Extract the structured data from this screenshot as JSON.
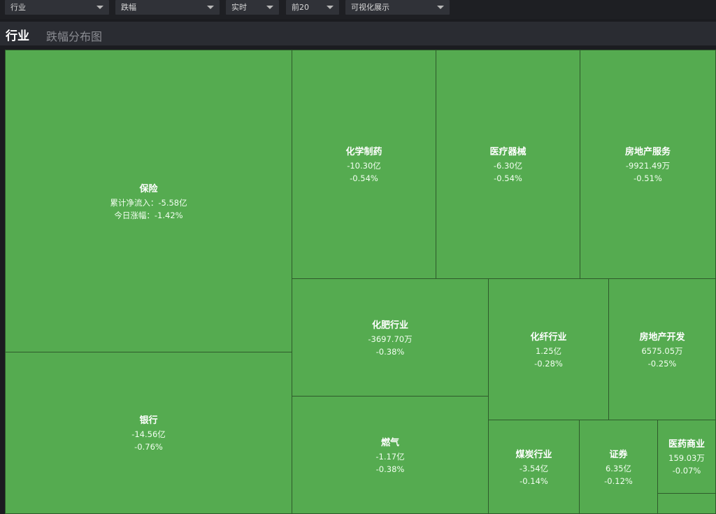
{
  "toolbar": {
    "category": "行业",
    "metric": "跌幅",
    "timeframe": "实时",
    "topn": "前20",
    "display": "可视化展示"
  },
  "header": {
    "title": "行业",
    "subtitle": "跌幅分布图"
  },
  "cells": [
    {
      "id": "baoxian",
      "name": "保险",
      "flow_label": "累计净流入：",
      "flow": "-5.58亿",
      "change_label": "今日涨幅：",
      "change": "-1.42%"
    },
    {
      "id": "yinhang",
      "name": "银行",
      "flow": "-14.56亿",
      "change": "-0.76%"
    },
    {
      "id": "huaxuezhiyao",
      "name": "化学制药",
      "flow": "-10.30亿",
      "change": "-0.54%"
    },
    {
      "id": "yiliaoqixie",
      "name": "医疗器械",
      "flow": "-6.30亿",
      "change": "-0.54%"
    },
    {
      "id": "fangdichanfuwu",
      "name": "房地产服务",
      "flow": "-9921.49万",
      "change": "-0.51%"
    },
    {
      "id": "huafeihangye",
      "name": "化肥行业",
      "flow": "-3697.70万",
      "change": "-0.38%"
    },
    {
      "id": "ranqi",
      "name": "燃气",
      "flow": "-1.17亿",
      "change": "-0.38%"
    },
    {
      "id": "huaxianhangye",
      "name": "化纤行业",
      "flow": "1.25亿",
      "change": "-0.28%"
    },
    {
      "id": "fangdichankaifa",
      "name": "房地产开发",
      "flow": "6575.05万",
      "change": "-0.25%"
    },
    {
      "id": "meitanhangye",
      "name": "煤炭行业",
      "flow": "-3.54亿",
      "change": "-0.14%"
    },
    {
      "id": "zhengquan",
      "name": "证券",
      "flow": "6.35亿",
      "change": "-0.12%"
    },
    {
      "id": "yiyaoshangye",
      "name": "医药商业",
      "flow": "159.03万",
      "change": "-0.07%"
    }
  ],
  "colors": {
    "tile": "#55ab50",
    "tile_border": "#2e5a2b",
    "background": "#1b1c20"
  }
}
